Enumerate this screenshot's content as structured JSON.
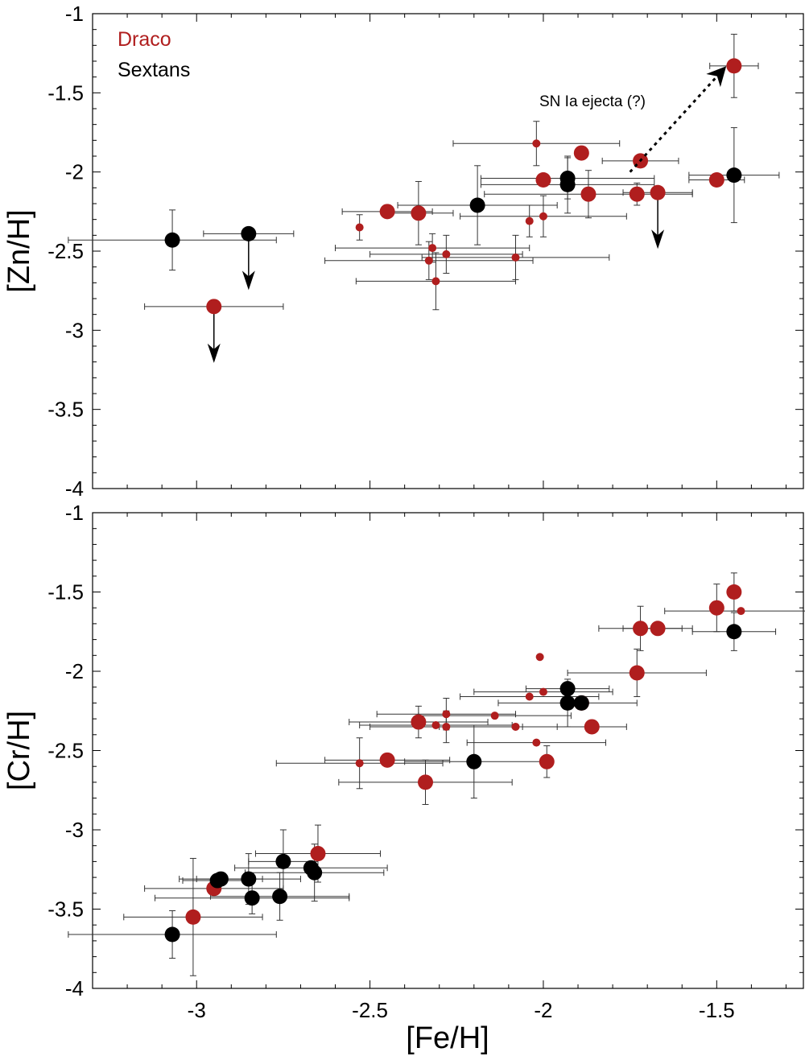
{
  "colors": {
    "draco": "#b01e1e",
    "sextans": "#000000",
    "errorbar": "#333333"
  },
  "chart_data": {
    "type": "scatter",
    "xlabel": "[Fe/H]",
    "xlim": [
      -3.3,
      -1.25
    ],
    "xticks": [
      "-3",
      "-2.5",
      "-2",
      "-1.5"
    ],
    "xtick_values": [
      -3,
      -2.5,
      -2,
      -1.5
    ],
    "legend": {
      "placement": "top-left",
      "entries": [
        "Draco",
        "Sextans"
      ]
    },
    "panels": [
      {
        "name": "zn",
        "ylabel": "[Zn/H]",
        "ylim": [
          -4,
          -1
        ],
        "yticks": [
          "-1",
          "-1.5",
          "-2",
          "-2.5",
          "-3",
          "-3.5",
          "-4"
        ],
        "ytick_values": [
          -1,
          -1.5,
          -2,
          -2.5,
          -3,
          -3.5,
          -4
        ],
        "annotation": "SN Ia ejecta (?)",
        "annotation_arrow": {
          "from": [
            -1.75,
            -2.0
          ],
          "to": [
            -1.48,
            -1.35
          ]
        },
        "series": [
          {
            "name": "Draco",
            "points": [
              {
                "x": -2.95,
                "y": -2.85,
                "xerr": 0.2,
                "yerr": 0,
                "size": "large",
                "upper_limit": true
              },
              {
                "x": -2.45,
                "y": -2.25,
                "xerr": 0.13,
                "yerr": 0,
                "size": "large"
              },
              {
                "x": -2.36,
                "y": -2.26,
                "xerr": 0.1,
                "yerr": 0.2,
                "size": "large"
              },
              {
                "x": -2.53,
                "y": -2.35,
                "xerr": 0.0,
                "yerr": 0.08,
                "size": "small"
              },
              {
                "x": -2.32,
                "y": -2.48,
                "xerr": 0.28,
                "yerr": 0.09,
                "size": "small"
              },
              {
                "x": -2.28,
                "y": -2.52,
                "xerr": 0.22,
                "yerr": 0.12,
                "size": "small"
              },
              {
                "x": -2.33,
                "y": -2.56,
                "xerr": 0.3,
                "yerr": 0.12,
                "size": "small"
              },
              {
                "x": -2.31,
                "y": -2.69,
                "xerr": 0.23,
                "yerr": 0.18,
                "size": "small"
              },
              {
                "x": -2.08,
                "y": -2.54,
                "xerr": 0.27,
                "yerr": 0.14,
                "size": "small"
              },
              {
                "x": -2.04,
                "y": -2.31,
                "xerr": 0.0,
                "yerr": 0.1,
                "size": "small"
              },
              {
                "x": -2.02,
                "y": -1.82,
                "xerr": 0.24,
                "yerr": 0.14,
                "size": "small"
              },
              {
                "x": -2.0,
                "y": -2.28,
                "xerr": 0.24,
                "yerr": 0.13,
                "size": "small"
              },
              {
                "x": -2.0,
                "y": -2.05,
                "xerr": 0.0,
                "yerr": 0.0,
                "size": "large"
              },
              {
                "x": -1.89,
                "y": -1.88,
                "xerr": 0.0,
                "yerr": 0.0,
                "size": "large"
              },
              {
                "x": -1.87,
                "y": -2.14,
                "xerr": 0.3,
                "yerr": 0.15,
                "size": "large"
              },
              {
                "x": -1.72,
                "y": -1.93,
                "xerr": 0.11,
                "yerr": 0.0,
                "size": "large"
              },
              {
                "x": -1.73,
                "y": -2.14,
                "xerr": 0.0,
                "yerr": 0.07,
                "size": "large"
              },
              {
                "x": -1.67,
                "y": -2.13,
                "xerr": 0.1,
                "yerr": 0.0,
                "size": "large",
                "upper_limit": true
              },
              {
                "x": -1.5,
                "y": -2.05,
                "xerr": 0.08,
                "yerr": 0.04,
                "size": "large"
              },
              {
                "x": -1.45,
                "y": -1.33,
                "xerr": 0.07,
                "yerr": 0.2,
                "size": "large"
              }
            ]
          },
          {
            "name": "Sextans",
            "points": [
              {
                "x": -3.07,
                "y": -2.43,
                "xerr": 0.3,
                "yerr": 0.19,
                "size": "large"
              },
              {
                "x": -2.85,
                "y": -2.39,
                "xerr": 0.13,
                "yerr": 0.0,
                "size": "large",
                "upper_limit": true
              },
              {
                "x": -2.19,
                "y": -2.21,
                "xerr": 0.23,
                "yerr": 0.25,
                "size": "large"
              },
              {
                "x": -1.93,
                "y": -2.04,
                "xerr": 0.25,
                "yerr": 0.13,
                "size": "large"
              },
              {
                "x": -1.93,
                "y": -2.08,
                "xerr": 0.25,
                "yerr": 0.18,
                "size": "large"
              },
              {
                "x": -1.45,
                "y": -2.02,
                "xerr": 0.13,
                "yerr": 0.3,
                "size": "large"
              }
            ]
          }
        ]
      },
      {
        "name": "cr",
        "ylabel": "[Cr/H]",
        "ylim": [
          -4,
          -1
        ],
        "yticks": [
          "-1",
          "-1.5",
          "-2",
          "-2.5",
          "-3",
          "-3.5",
          "-4"
        ],
        "ytick_values": [
          -1,
          -1.5,
          -2,
          -2.5,
          -3,
          -3.5,
          -4
        ],
        "series": [
          {
            "name": "Draco",
            "points": [
              {
                "x": -3.01,
                "y": -3.55,
                "xerr": 0.2,
                "yerr": 0.37,
                "size": "large"
              },
              {
                "x": -2.95,
                "y": -3.37,
                "xerr": 0.2,
                "yerr": 0.0,
                "size": "large"
              },
              {
                "x": -2.65,
                "y": -3.15,
                "xerr": 0.18,
                "yerr": 0.18,
                "size": "large"
              },
              {
                "x": -2.45,
                "y": -2.56,
                "xerr": 0.18,
                "yerr": 0.0,
                "size": "large"
              },
              {
                "x": -2.34,
                "y": -2.7,
                "xerr": 0.25,
                "yerr": 0.14,
                "size": "large"
              },
              {
                "x": -2.53,
                "y": -2.58,
                "xerr": 0.24,
                "yerr": 0.16,
                "size": "small"
              },
              {
                "x": -2.36,
                "y": -2.32,
                "xerr": 0.2,
                "yerr": 0.1,
                "size": "large"
              },
              {
                "x": -2.31,
                "y": -2.34,
                "xerr": 0.22,
                "yerr": 0.0,
                "size": "small"
              },
              {
                "x": -2.28,
                "y": -2.35,
                "xerr": 0.22,
                "yerr": 0.1,
                "size": "small"
              },
              {
                "x": -2.28,
                "y": -2.27,
                "xerr": 0.2,
                "yerr": 0.1,
                "size": "small"
              },
              {
                "x": -2.14,
                "y": -2.28,
                "xerr": 0.22,
                "yerr": 0.0,
                "size": "small"
              },
              {
                "x": -2.08,
                "y": -2.35,
                "xerr": 0.22,
                "yerr": 0.0,
                "size": "small"
              },
              {
                "x": -2.04,
                "y": -2.16,
                "xerr": 0.2,
                "yerr": 0.0,
                "size": "small"
              },
              {
                "x": -2.02,
                "y": -2.45,
                "xerr": 0.2,
                "yerr": 0.0,
                "size": "small"
              },
              {
                "x": -2.0,
                "y": -2.13,
                "xerr": 0.2,
                "yerr": 0.0,
                "size": "small"
              },
              {
                "x": -2.01,
                "y": -1.91,
                "xerr": 0.0,
                "yerr": 0.0,
                "size": "small"
              },
              {
                "x": -1.99,
                "y": -2.57,
                "xerr": 0.0,
                "yerr": 0.1,
                "size": "large"
              },
              {
                "x": -1.89,
                "y": -2.2,
                "xerr": 0.0,
                "yerr": 0.0,
                "size": "large"
              },
              {
                "x": -1.86,
                "y": -2.35,
                "xerr": 0.1,
                "yerr": 0.0,
                "size": "large"
              },
              {
                "x": -1.73,
                "y": -2.01,
                "xerr": 0.2,
                "yerr": 0.15,
                "size": "large"
              },
              {
                "x": -1.72,
                "y": -1.73,
                "xerr": 0.12,
                "yerr": 0.14,
                "size": "large"
              },
              {
                "x": -1.67,
                "y": -1.73,
                "xerr": 0.1,
                "yerr": 0.0,
                "size": "large"
              },
              {
                "x": -1.5,
                "y": -1.6,
                "xerr": 0.0,
                "yerr": 0.15,
                "size": "large"
              },
              {
                "x": -1.45,
                "y": -1.5,
                "xerr": 0.0,
                "yerr": 0.12,
                "size": "large"
              },
              {
                "x": -1.43,
                "y": -1.62,
                "xerr": 0.22,
                "yerr": 0.0,
                "size": "small"
              }
            ]
          },
          {
            "name": "Sextans",
            "points": [
              {
                "x": -3.07,
                "y": -3.66,
                "xerr": 0.3,
                "yerr": 0.15,
                "size": "large"
              },
              {
                "x": -2.94,
                "y": -3.32,
                "xerr": 0.1,
                "yerr": 0.0,
                "size": "large"
              },
              {
                "x": -2.93,
                "y": -3.31,
                "xerr": 0.12,
                "yerr": 0.0,
                "size": "large"
              },
              {
                "x": -2.85,
                "y": -3.31,
                "xerr": 0.15,
                "yerr": 0.16,
                "size": "large"
              },
              {
                "x": -2.84,
                "y": -3.43,
                "xerr": 0.28,
                "yerr": 0.1,
                "size": "large"
              },
              {
                "x": -2.75,
                "y": -3.2,
                "xerr": 0.1,
                "yerr": 0.2,
                "size": "large"
              },
              {
                "x": -2.76,
                "y": -3.42,
                "xerr": 0.2,
                "yerr": 0.15,
                "size": "large"
              },
              {
                "x": -2.67,
                "y": -3.24,
                "xerr": 0.22,
                "yerr": 0.0,
                "size": "large"
              },
              {
                "x": -2.66,
                "y": -3.27,
                "xerr": 0.2,
                "yerr": 0.18,
                "size": "large"
              },
              {
                "x": -2.2,
                "y": -2.57,
                "xerr": 0.2,
                "yerr": 0.23,
                "size": "large"
              },
              {
                "x": -1.93,
                "y": -2.11,
                "xerr": 0.12,
                "yerr": 0.0,
                "size": "large"
              },
              {
                "x": -1.93,
                "y": -2.2,
                "xerr": 0.2,
                "yerr": 0.15,
                "size": "large"
              },
              {
                "x": -1.89,
                "y": -2.2,
                "xerr": 0.0,
                "yerr": 0.0,
                "size": "large"
              },
              {
                "x": -1.45,
                "y": -1.75,
                "xerr": 0.12,
                "yerr": 0.12,
                "size": "large"
              }
            ]
          }
        ]
      }
    ]
  }
}
